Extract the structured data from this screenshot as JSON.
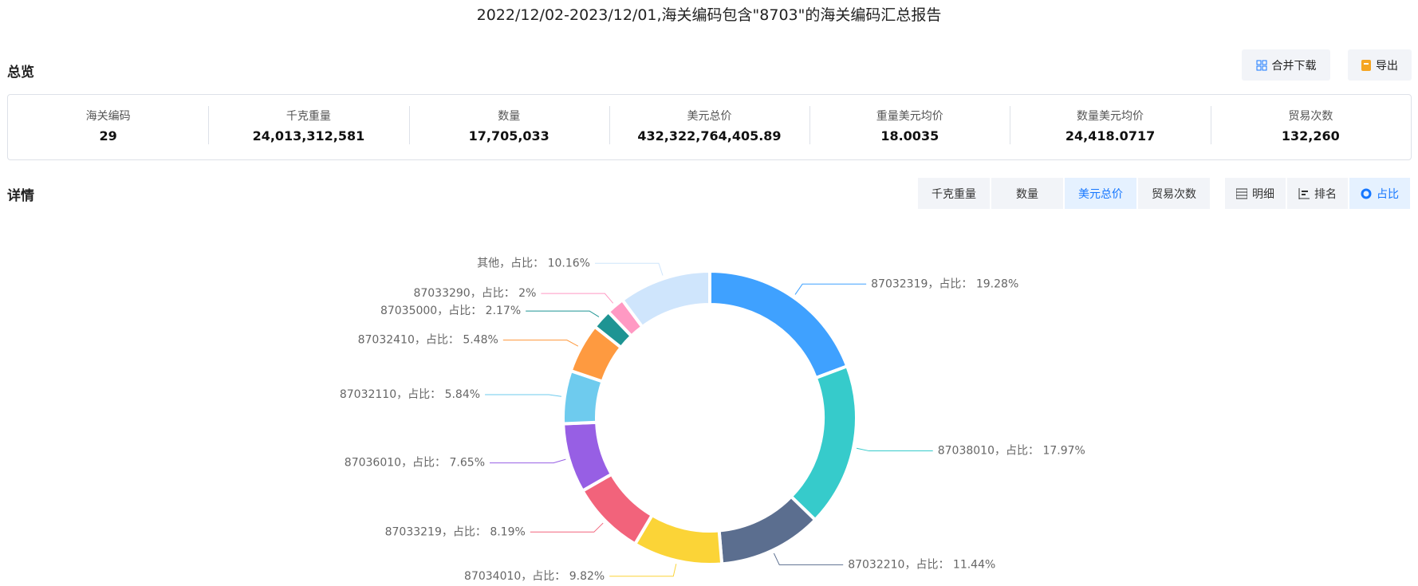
{
  "header": {
    "title": "2022/12/02-2023/12/01,海关编码包含\"8703\"的海关编码汇总报告"
  },
  "overview": {
    "title": "总览",
    "buttons": [
      "合并下载",
      "导出"
    ],
    "stats": [
      {
        "label": "海关编码",
        "value": "29"
      },
      {
        "label": "千克重量",
        "value": "24,013,312,581"
      },
      {
        "label": "数量",
        "value": "17,705,033"
      },
      {
        "label": "美元总价",
        "value": "432,322,764,405.89"
      },
      {
        "label": "重量美元均价",
        "value": "18.0035"
      },
      {
        "label": "数量美元均价",
        "value": "24,418.0717"
      },
      {
        "label": "贸易次数",
        "value": "132,260"
      }
    ]
  },
  "details": {
    "title": "详情",
    "metric_tabs": [
      "千克重量",
      "数量",
      "美元总价",
      "贸易次数"
    ],
    "active_metric_tab": 2,
    "view_tabs": [
      "明细",
      "排名",
      "占比"
    ],
    "active_view_tab": 2
  },
  "chart_data": {
    "type": "pie",
    "donut": true,
    "categories": [
      "87032319",
      "87038010",
      "87032210",
      "87034010",
      "87033219",
      "87036010",
      "87032110",
      "87032410",
      "87035000",
      "87033290",
      "其他"
    ],
    "values": [
      19.28,
      17.97,
      11.44,
      9.82,
      8.19,
      7.65,
      5.84,
      5.48,
      2.17,
      2,
      10.16
    ],
    "value_labels": [
      "19.28%",
      "17.97%",
      "11.44%",
      "9.82%",
      "8.19%",
      "7.65%",
      "5.84%",
      "5.48%",
      "2.17%",
      "2%",
      "10.16%"
    ],
    "label_separator": "，占比： ",
    "colors": [
      "#3fa1ff",
      "#36cbcb",
      "#5b6e8f",
      "#fbd437",
      "#f2637b",
      "#975fe4",
      "#6ecbee",
      "#fe9a40",
      "#1e9493",
      "#ff99c3",
      "#cfe5fc"
    ]
  }
}
